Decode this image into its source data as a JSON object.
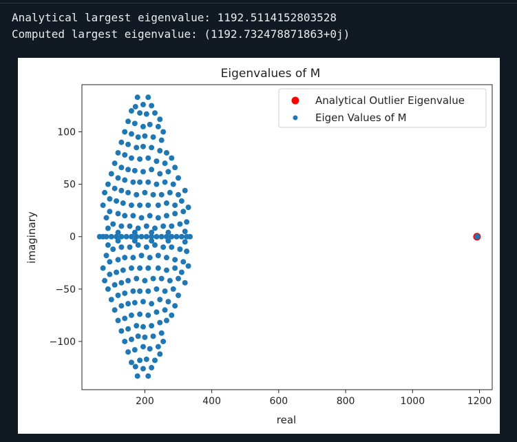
{
  "output_lines": [
    "Analytical largest eigenvalue: 1192.5114152803528",
    "Computed largest eigenvalue: (1192.732478871863+0j)"
  ],
  "chart_data": {
    "type": "scatter",
    "title": "Eigenvalues of M",
    "xlabel": "real",
    "ylabel": "imaginary",
    "xlim": [
      12,
      1238
    ],
    "ylim": [
      -146,
      145
    ],
    "xticks": [
      200,
      400,
      600,
      800,
      1000,
      1200
    ],
    "xtick_labels": [
      "200",
      "400",
      "600",
      "800",
      "1000",
      "1200"
    ],
    "yticks": [
      -100,
      -50,
      0,
      50,
      100
    ],
    "ytick_labels": [
      "−100",
      "−50",
      "0",
      "50",
      "100"
    ],
    "grid": false,
    "legend_position": "upper right",
    "colors": {
      "outlier": "#ff0000",
      "eigen": "#1f77b4"
    },
    "series": [
      {
        "name": "Analytical Outlier Eigenvalue",
        "color": "#ff0000",
        "points": [
          [
            1192.51,
            0
          ]
        ]
      },
      {
        "name": "Eigen Values of M",
        "color": "#1f77b4",
        "points": [
          [
            1192.73,
            0
          ],
          [
            65,
            0
          ],
          [
            75,
            0
          ],
          [
            85,
            0
          ],
          [
            100,
            0
          ],
          [
            115,
            0
          ],
          [
            130,
            0
          ],
          [
            145,
            0
          ],
          [
            160,
            0
          ],
          [
            175,
            0
          ],
          [
            190,
            0
          ],
          [
            205,
            0
          ],
          [
            220,
            0
          ],
          [
            235,
            0
          ],
          [
            250,
            0
          ],
          [
            265,
            0
          ],
          [
            280,
            0
          ],
          [
            295,
            0
          ],
          [
            310,
            0
          ],
          [
            325,
            0
          ],
          [
            335,
            0
          ],
          [
            178,
            133
          ],
          [
            210,
            133
          ],
          [
            172,
            124
          ],
          [
            195,
            126
          ],
          [
            220,
            125
          ],
          [
            160,
            120
          ],
          [
            185,
            118
          ],
          [
            205,
            117
          ],
          [
            230,
            118
          ],
          [
            245,
            112
          ],
          [
            150,
            110
          ],
          [
            170,
            108
          ],
          [
            195,
            105
          ],
          [
            215,
            107
          ],
          [
            240,
            105
          ],
          [
            255,
            100
          ],
          [
            140,
            100
          ],
          [
            160,
            98
          ],
          [
            180,
            95
          ],
          [
            200,
            96
          ],
          [
            225,
            95
          ],
          [
            250,
            92
          ],
          [
            130,
            90
          ],
          [
            150,
            88
          ],
          [
            175,
            85
          ],
          [
            195,
            86
          ],
          [
            220,
            85
          ],
          [
            245,
            82
          ],
          [
            265,
            80
          ],
          [
            120,
            80
          ],
          [
            140,
            78
          ],
          [
            160,
            75
          ],
          [
            185,
            74
          ],
          [
            210,
            75
          ],
          [
            235,
            72
          ],
          [
            260,
            70
          ],
          [
            280,
            75
          ],
          [
            110,
            70
          ],
          [
            130,
            66
          ],
          [
            150,
            64
          ],
          [
            170,
            63
          ],
          [
            195,
            62
          ],
          [
            220,
            64
          ],
          [
            245,
            60
          ],
          [
            270,
            62
          ],
          [
            290,
            66
          ],
          [
            100,
            60
          ],
          [
            120,
            56
          ],
          [
            140,
            54
          ],
          [
            165,
            52
          ],
          [
            185,
            52
          ],
          [
            210,
            52
          ],
          [
            235,
            50
          ],
          [
            260,
            52
          ],
          [
            285,
            50
          ],
          [
            300,
            56
          ],
          [
            90,
            50
          ],
          [
            110,
            46
          ],
          [
            130,
            44
          ],
          [
            150,
            42
          ],
          [
            175,
            40
          ],
          [
            200,
            42
          ],
          [
            225,
            40
          ],
          [
            250,
            40
          ],
          [
            275,
            42
          ],
          [
            300,
            40
          ],
          [
            320,
            44
          ],
          [
            80,
            42
          ],
          [
            95,
            36
          ],
          [
            115,
            34
          ],
          [
            135,
            32
          ],
          [
            160,
            30
          ],
          [
            185,
            30
          ],
          [
            210,
            30
          ],
          [
            240,
            30
          ],
          [
            265,
            32
          ],
          [
            290,
            30
          ],
          [
            310,
            34
          ],
          [
            75,
            30
          ],
          [
            95,
            24
          ],
          [
            120,
            22
          ],
          [
            140,
            20
          ],
          [
            165,
            20
          ],
          [
            190,
            18
          ],
          [
            215,
            20
          ],
          [
            240,
            18
          ],
          [
            265,
            20
          ],
          [
            290,
            22
          ],
          [
            315,
            24
          ],
          [
            330,
            28
          ],
          [
            85,
            18
          ],
          [
            105,
            12
          ],
          [
            130,
            10
          ],
          [
            155,
            10
          ],
          [
            180,
            8
          ],
          [
            205,
            10
          ],
          [
            230,
            8
          ],
          [
            255,
            10
          ],
          [
            280,
            10
          ],
          [
            305,
            12
          ],
          [
            325,
            14
          ],
          [
            90,
            8
          ],
          [
            120,
            4
          ],
          [
            170,
            4
          ],
          [
            220,
            4
          ],
          [
            270,
            4
          ],
          [
            320,
            5
          ],
          [
            90,
            -8
          ],
          [
            120,
            -4
          ],
          [
            170,
            -4
          ],
          [
            220,
            -4
          ],
          [
            270,
            -4
          ],
          [
            320,
            -5
          ],
          [
            85,
            -18
          ],
          [
            105,
            -12
          ],
          [
            130,
            -10
          ],
          [
            155,
            -10
          ],
          [
            180,
            -8
          ],
          [
            205,
            -10
          ],
          [
            230,
            -8
          ],
          [
            255,
            -10
          ],
          [
            280,
            -10
          ],
          [
            305,
            -12
          ],
          [
            325,
            -14
          ],
          [
            75,
            -30
          ],
          [
            95,
            -24
          ],
          [
            120,
            -22
          ],
          [
            140,
            -20
          ],
          [
            165,
            -20
          ],
          [
            190,
            -18
          ],
          [
            215,
            -20
          ],
          [
            240,
            -18
          ],
          [
            265,
            -20
          ],
          [
            290,
            -22
          ],
          [
            315,
            -24
          ],
          [
            330,
            -28
          ],
          [
            80,
            -42
          ],
          [
            95,
            -36
          ],
          [
            115,
            -34
          ],
          [
            135,
            -32
          ],
          [
            160,
            -30
          ],
          [
            185,
            -30
          ],
          [
            210,
            -30
          ],
          [
            240,
            -30
          ],
          [
            265,
            -32
          ],
          [
            290,
            -30
          ],
          [
            310,
            -34
          ],
          [
            90,
            -50
          ],
          [
            110,
            -46
          ],
          [
            130,
            -44
          ],
          [
            150,
            -42
          ],
          [
            175,
            -40
          ],
          [
            200,
            -42
          ],
          [
            225,
            -40
          ],
          [
            250,
            -40
          ],
          [
            275,
            -42
          ],
          [
            300,
            -40
          ],
          [
            320,
            -44
          ],
          [
            100,
            -60
          ],
          [
            120,
            -56
          ],
          [
            140,
            -54
          ],
          [
            165,
            -52
          ],
          [
            185,
            -52
          ],
          [
            210,
            -52
          ],
          [
            235,
            -50
          ],
          [
            260,
            -52
          ],
          [
            285,
            -50
          ],
          [
            300,
            -56
          ],
          [
            110,
            -70
          ],
          [
            130,
            -66
          ],
          [
            150,
            -64
          ],
          [
            170,
            -63
          ],
          [
            195,
            -62
          ],
          [
            220,
            -64
          ],
          [
            245,
            -60
          ],
          [
            270,
            -62
          ],
          [
            290,
            -66
          ],
          [
            120,
            -80
          ],
          [
            140,
            -78
          ],
          [
            160,
            -75
          ],
          [
            185,
            -74
          ],
          [
            210,
            -75
          ],
          [
            235,
            -72
          ],
          [
            260,
            -70
          ],
          [
            280,
            -75
          ],
          [
            130,
            -90
          ],
          [
            150,
            -88
          ],
          [
            175,
            -85
          ],
          [
            195,
            -86
          ],
          [
            220,
            -85
          ],
          [
            245,
            -82
          ],
          [
            265,
            -80
          ],
          [
            140,
            -100
          ],
          [
            160,
            -98
          ],
          [
            180,
            -95
          ],
          [
            200,
            -96
          ],
          [
            225,
            -95
          ],
          [
            250,
            -92
          ],
          [
            150,
            -110
          ],
          [
            170,
            -108
          ],
          [
            195,
            -105
          ],
          [
            215,
            -107
          ],
          [
            240,
            -105
          ],
          [
            255,
            -100
          ],
          [
            160,
            -120
          ],
          [
            185,
            -118
          ],
          [
            205,
            -117
          ],
          [
            230,
            -118
          ],
          [
            245,
            -112
          ],
          [
            172,
            -124
          ],
          [
            195,
            -126
          ],
          [
            220,
            -125
          ],
          [
            178,
            -133
          ],
          [
            210,
            -133
          ]
        ]
      }
    ]
  }
}
